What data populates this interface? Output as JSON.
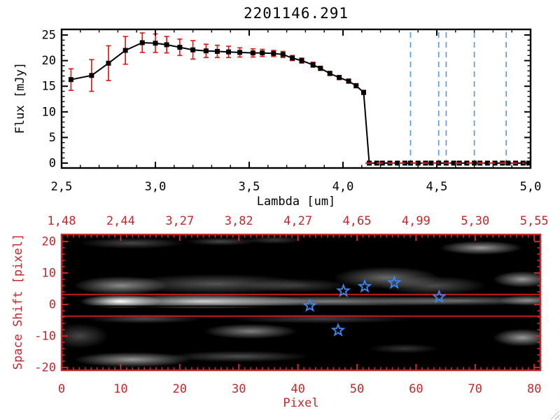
{
  "title": "2201146.291",
  "icons": {
    "resize_grip": "diagonal-hatch-triangle"
  },
  "colors": {
    "spectrum": "#000000",
    "error_bars": "#e01d1d",
    "secondary_axes": "#c2282c",
    "line_markers": "#5b9be0",
    "stars": "#3d85ec",
    "background": "#ffffff",
    "image_background": "#000000"
  },
  "chart_data": [
    {
      "type": "line",
      "title": "2201146.291",
      "xlabel": "Lambda [um]",
      "ylabel": "Flux [mJy]",
      "xlim": [
        2.5,
        5.0
      ],
      "ylim": [
        0,
        25
      ],
      "x_ticks": [
        2.5,
        3.0,
        3.5,
        4.0,
        4.5,
        5.0
      ],
      "x_tick_labels": [
        "2,5",
        "3,0",
        "3,5",
        "4,0",
        "4,5",
        "5,0"
      ],
      "x_minor_step": 0.1,
      "y_ticks": [
        0,
        5,
        10,
        15,
        20,
        25
      ],
      "y_tick_labels": [
        "0",
        "5",
        "10",
        "15",
        "20",
        "25"
      ],
      "y_minor_step": 1,
      "grid": false,
      "series": [
        {
          "name": "spectrum",
          "color": "#000000",
          "marker": "filled-square",
          "error_bar_color": "#e01d1d",
          "points": [
            [
              2.55,
              16.3,
              2.1
            ],
            [
              2.66,
              17.1,
              3.1
            ],
            [
              2.75,
              19.5,
              3.4
            ],
            [
              2.84,
              22.0,
              2.7
            ],
            [
              2.93,
              23.5,
              1.9
            ],
            [
              3.0,
              23.4,
              1.8
            ],
            [
              3.06,
              23.1,
              1.6
            ],
            [
              3.13,
              22.6,
              1.6
            ],
            [
              3.2,
              22.1,
              1.8
            ],
            [
              3.27,
              21.9,
              1.3
            ],
            [
              3.33,
              21.8,
              1.2
            ],
            [
              3.39,
              21.7,
              1.1
            ],
            [
              3.45,
              21.6,
              0.9
            ],
            [
              3.52,
              21.5,
              0.8
            ],
            [
              3.57,
              21.5,
              0.7
            ],
            [
              3.63,
              21.4,
              0.6
            ],
            [
              3.68,
              21.2,
              0.6
            ],
            [
              3.73,
              20.5,
              0.5
            ],
            [
              3.78,
              20.0,
              0.5
            ],
            [
              3.84,
              19.2,
              0.5
            ],
            [
              3.88,
              18.5,
              0.4
            ],
            [
              3.93,
              17.5,
              0.4
            ],
            [
              3.98,
              16.7,
              0.4
            ],
            [
              4.03,
              16.0,
              0.4
            ],
            [
              4.07,
              15.1,
              0.4
            ],
            [
              4.11,
              13.8,
              0.4
            ],
            [
              4.14,
              0.0,
              0.25
            ],
            [
              4.18,
              0.0,
              0.25
            ],
            [
              4.21,
              0.0,
              0.25
            ],
            [
              4.25,
              0.0,
              0.25
            ],
            [
              4.29,
              0.0,
              0.25
            ],
            [
              4.33,
              0.0,
              0.25
            ],
            [
              4.36,
              0.0,
              0.25
            ],
            [
              4.4,
              0.0,
              0.25
            ],
            [
              4.44,
              0.0,
              0.25
            ],
            [
              4.47,
              0.0,
              0.25
            ],
            [
              4.51,
              0.0,
              0.25
            ],
            [
              4.55,
              0.0,
              0.25
            ],
            [
              4.59,
              0.0,
              0.25
            ],
            [
              4.62,
              0.0,
              0.25
            ],
            [
              4.66,
              0.0,
              0.25
            ],
            [
              4.7,
              0.0,
              0.25
            ],
            [
              4.73,
              0.0,
              0.25
            ],
            [
              4.77,
              0.0,
              0.25
            ],
            [
              4.81,
              0.0,
              0.25
            ],
            [
              4.85,
              0.0,
              0.25
            ],
            [
              4.88,
              0.0,
              0.25
            ],
            [
              4.92,
              0.0,
              0.25
            ],
            [
              4.96,
              0.0,
              0.25
            ],
            [
              4.99,
              0.0,
              0.25
            ]
          ]
        }
      ],
      "spectral_line_markers": {
        "color": "#5b9be0",
        "style": "dashed",
        "wavelengths": [
          4.36,
          4.51,
          4.55,
          4.7,
          4.87
        ]
      },
      "zero_level_line": {
        "color": "#e01d1d",
        "style": "dashed",
        "y": 0,
        "x_from": 4.12,
        "x_to": 5.0
      }
    },
    {
      "type": "heatmap",
      "xlabel": "Pixel",
      "ylabel": "Space Shift [pixel]",
      "axis_color": "#c2282c",
      "background": "#000000",
      "xlim": [
        0,
        81
      ],
      "ylim": [
        -21,
        22
      ],
      "x_ticks": [
        0,
        10,
        20,
        30,
        40,
        50,
        60,
        70,
        80
      ],
      "x_tick_labels": [
        "0",
        "10",
        "20",
        "30",
        "40",
        "50",
        "60",
        "70",
        "80"
      ],
      "x_minor_step": 1,
      "y_ticks": [
        20,
        10,
        0,
        -10,
        -20
      ],
      "y_tick_labels": [
        "20",
        "10",
        "0",
        "-10",
        "-20"
      ],
      "y_minor_step": 2,
      "top_axis_tick_labels": [
        "1,48",
        "2,44",
        "3,27",
        "3,82",
        "4,27",
        "4,65",
        "4,99",
        "5,30",
        "5,55"
      ],
      "aperture_lines": {
        "color": "#e01d1d",
        "shifts": [
          3.2,
          -3.7
        ]
      },
      "center_line": {
        "color": "#000000",
        "shift": -0.5
      },
      "stars": {
        "color": "#3d85ec",
        "points": [
          [
            42.0,
            -0.4
          ],
          [
            47.7,
            4.3
          ],
          [
            51.3,
            5.7
          ],
          [
            56.3,
            6.9
          ],
          [
            63.9,
            2.4
          ],
          [
            46.8,
            -8.2
          ]
        ]
      },
      "blobs": [
        [
          10,
          1.0,
          7,
          2.2,
          1.0
        ],
        [
          24,
          1.0,
          18,
          2.4,
          0.8
        ],
        [
          45,
          1.0,
          26,
          1.8,
          0.5
        ],
        [
          68,
          1.2,
          16,
          1.6,
          0.4
        ],
        [
          79,
          1.3,
          5,
          1.8,
          0.5
        ],
        [
          10,
          6.0,
          8,
          3.0,
          0.55
        ],
        [
          26,
          6.5,
          16,
          3.2,
          0.33
        ],
        [
          40,
          6.0,
          9,
          2.2,
          0.22
        ],
        [
          12,
          19.5,
          9,
          1.8,
          0.28
        ],
        [
          27,
          20.0,
          6,
          1.3,
          0.28
        ],
        [
          36,
          20.5,
          5,
          1.3,
          0.22
        ],
        [
          12,
          -17.5,
          10,
          2.4,
          0.6
        ],
        [
          30,
          -16.5,
          12,
          1.8,
          0.3
        ],
        [
          3,
          -10.0,
          5,
          4.0,
          0.28
        ],
        [
          32,
          -8.5,
          8,
          2.4,
          0.5
        ],
        [
          44,
          -4.5,
          16,
          1.5,
          0.26
        ],
        [
          14,
          -4.5,
          10,
          1.5,
          0.3
        ],
        [
          55,
          8.5,
          9,
          3.5,
          0.42
        ],
        [
          63,
          6.0,
          9,
          3.0,
          0.3
        ],
        [
          71,
          18.0,
          7,
          2.2,
          0.6
        ],
        [
          78,
          8.0,
          5,
          2.6,
          0.6
        ],
        [
          78,
          -10.5,
          5,
          2.8,
          0.6
        ],
        [
          58,
          -14.0,
          6,
          1.5,
          0.2
        ]
      ]
    }
  ]
}
